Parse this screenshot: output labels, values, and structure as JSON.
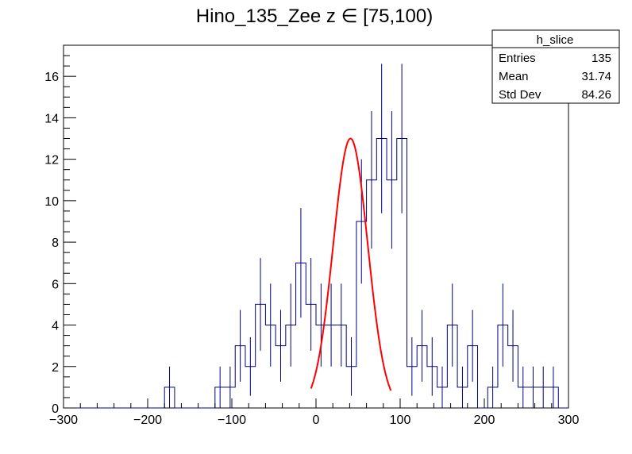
{
  "chart_data": {
    "type": "histogram",
    "title": "Hino_135_Zee z  ∈ [75,100)",
    "xlim": [
      -300,
      300
    ],
    "ylim": [
      0,
      17.5
    ],
    "x_ticks": [
      -300,
      -200,
      -100,
      0,
      100,
      200,
      300
    ],
    "y_ticks": [
      0,
      2,
      4,
      6,
      8,
      10,
      12,
      14,
      16
    ],
    "bin_edges_start": -300,
    "bin_width": 12,
    "counts": [
      0,
      0,
      0,
      0,
      0,
      0,
      0,
      0,
      0,
      0,
      1,
      0,
      0,
      0,
      0,
      1,
      1,
      3,
      2,
      5,
      4,
      3,
      4,
      7,
      5,
      4,
      4,
      4,
      2,
      9,
      11,
      13,
      11,
      13,
      2,
      3,
      2,
      1,
      4,
      1,
      3,
      0,
      1,
      4,
      3,
      1,
      1,
      1,
      1,
      0
    ],
    "series": [
      {
        "name": "h_slice",
        "style": "step",
        "color": "#000080"
      },
      {
        "name": "fit",
        "style": "line",
        "color": "#ff0000"
      }
    ],
    "fit": {
      "type": "gaussian",
      "amplitude": 13.0,
      "mean": 41,
      "sigma": 20.5,
      "range": [
        -6,
        89
      ]
    },
    "stats": {
      "name": "h_slice",
      "rows": [
        {
          "label": "Entries",
          "value": "135"
        },
        {
          "label": "Mean",
          "value": "31.74"
        },
        {
          "label": "Std Dev",
          "value": "84.26"
        }
      ]
    }
  }
}
